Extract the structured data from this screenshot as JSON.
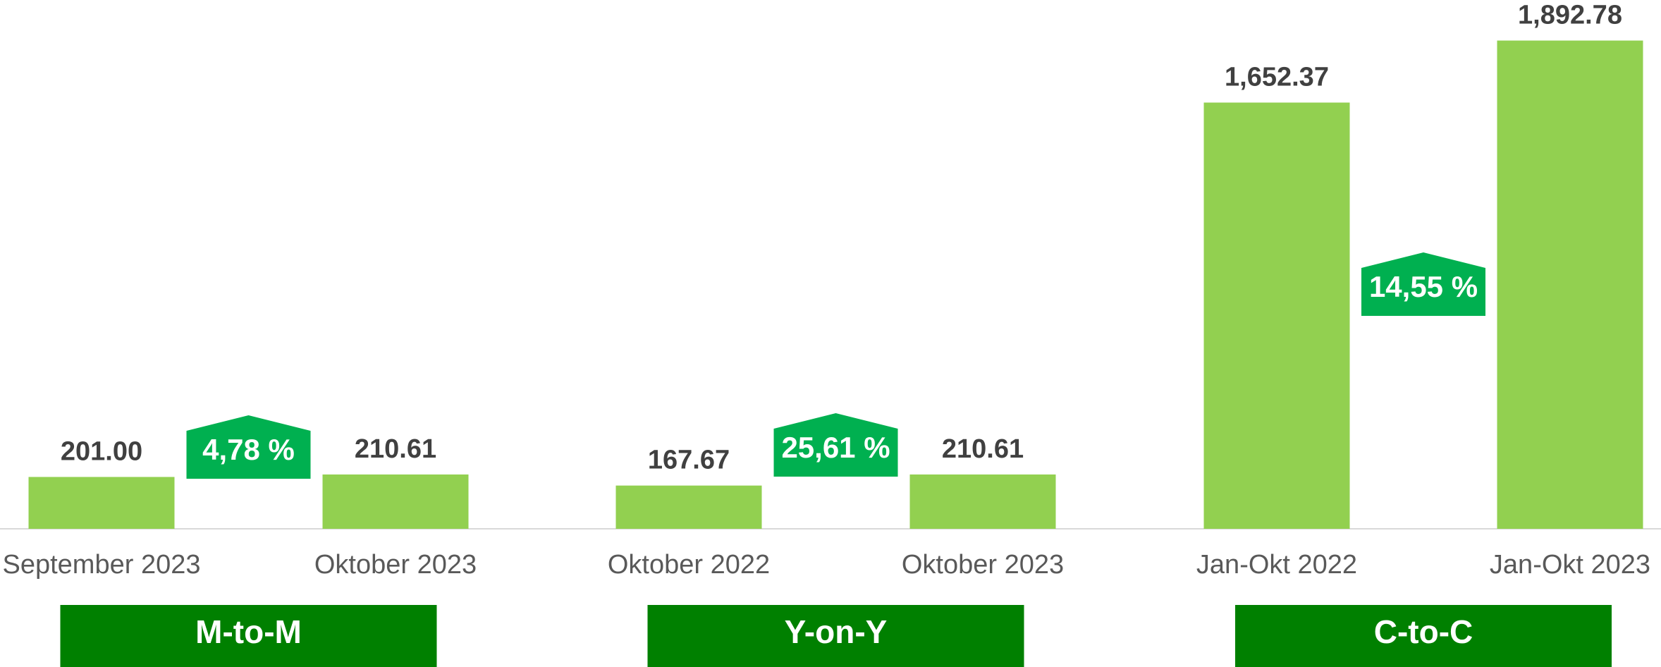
{
  "chart_data": {
    "type": "bar",
    "categories": [
      "September 2023",
      "Oktober 2023",
      "Oktober 2022",
      "Oktober 2023",
      "Jan-Okt 2022",
      "Jan-Okt 2023"
    ],
    "values": [
      201.0,
      210.61,
      167.67,
      210.61,
      1652.37,
      1892.78
    ],
    "value_labels": [
      "201.00",
      "210.61",
      "167.67",
      "210.61",
      "1,652.37",
      "1,892.78"
    ],
    "color": "#92d050",
    "ylim": [
      0,
      2050
    ],
    "groups": [
      {
        "label": "M-to-M",
        "change": "4,78 %"
      },
      {
        "label": "Y-on-Y",
        "change": "25,61 %"
      },
      {
        "label": "C-to-C",
        "change": "14,55 %"
      }
    ],
    "group_color": "#008000",
    "change_color": "#00b050"
  }
}
